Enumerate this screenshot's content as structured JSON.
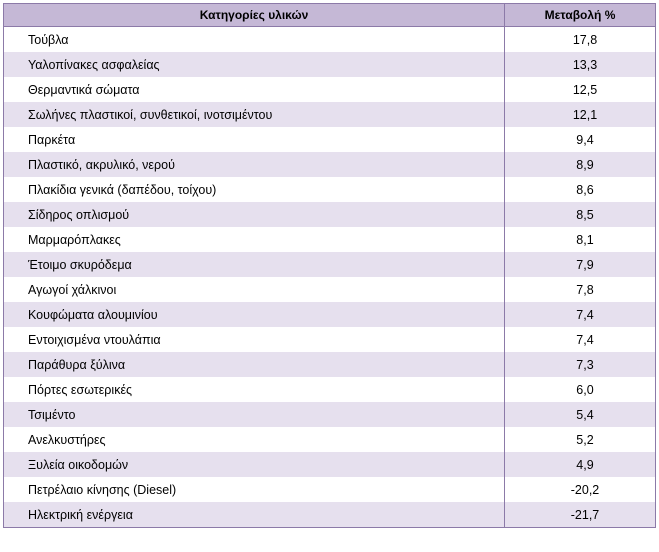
{
  "table": {
    "headers": {
      "category": "Κατηγορίες υλικών",
      "change": "Μεταβολή %"
    },
    "colors": {
      "header_bg": "#c5b8d6",
      "stripe_bg": "#e6e0ee",
      "border": "#8c7aa8"
    },
    "rows": [
      {
        "category": "Τούβλα",
        "change": "17,8"
      },
      {
        "category": "Υαλοπίνακες ασφαλείας",
        "change": "13,3"
      },
      {
        "category": "Θερμαντικά σώματα",
        "change": "12,5"
      },
      {
        "category": "Σωλήνες πλαστικοί, συνθετικοί, ινοτσιμέντου",
        "change": "12,1"
      },
      {
        "category": "Παρκέτα",
        "change": "9,4"
      },
      {
        "category": "Πλαστικό, ακρυλικό, νερού",
        "change": "8,9"
      },
      {
        "category": "Πλακίδια γενικά (δαπέδου, τοίχου)",
        "change": "8,6"
      },
      {
        "category": "Σίδηρος οπλισμού",
        "change": "8,5"
      },
      {
        "category": "Μαρμαρόπλακες",
        "change": "8,1"
      },
      {
        "category": "Έτοιμο σκυρόδεμα",
        "change": "7,9"
      },
      {
        "category": "Αγωγοί χάλκινοι",
        "change": "7,8"
      },
      {
        "category": "Κουφώματα αλουμινίου",
        "change": "7,4"
      },
      {
        "category": "Εντοιχισμένα ντουλάπια",
        "change": "7,4"
      },
      {
        "category": "Παράθυρα ξύλινα",
        "change": "7,3"
      },
      {
        "category": "Πόρτες εσωτερικές",
        "change": "6,0"
      },
      {
        "category": "Τσιμέντο",
        "change": "5,4"
      },
      {
        "category": "Ανελκυστήρες",
        "change": "5,2"
      },
      {
        "category": "Ξυλεία οικοδομών",
        "change": "4,9"
      },
      {
        "category": "Πετρέλαιο κίνησης (Diesel)",
        "change": "-20,2"
      },
      {
        "category": "Ηλεκτρική ενέργεια",
        "change": "-21,7"
      }
    ]
  }
}
